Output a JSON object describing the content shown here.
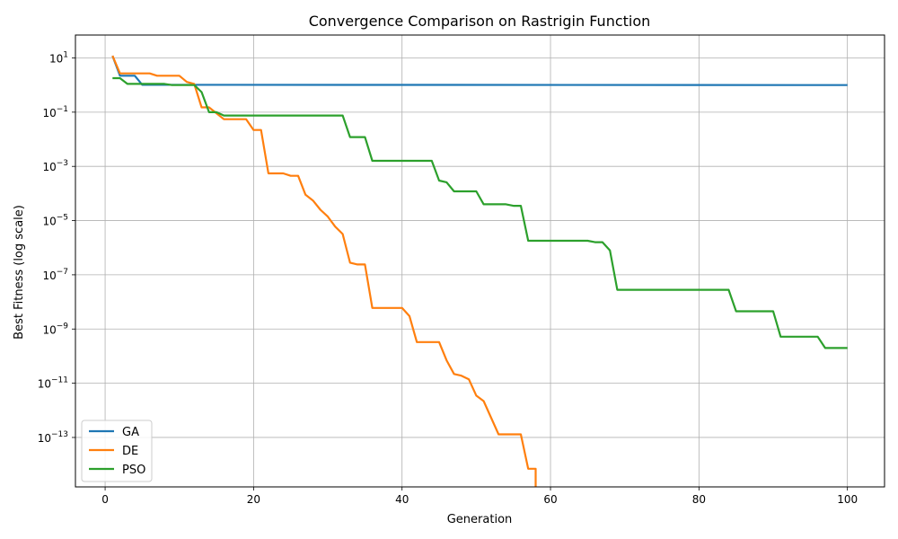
{
  "chart_data": {
    "type": "line",
    "title": "Convergence Comparison on Rastrigin Function",
    "xlabel": "Generation",
    "ylabel": "Best Fitness (log scale)",
    "yscale": "log",
    "xlim": [
      -4,
      105
    ],
    "ylim": [
      1.5e-15,
      70
    ],
    "xticks": [
      0,
      20,
      40,
      60,
      80,
      100
    ],
    "yticks": [
      {
        "value": 10,
        "base": "10",
        "exp": "1"
      },
      {
        "value": 0.1,
        "base": "10",
        "exp": "−1"
      },
      {
        "value": 0.001,
        "base": "10",
        "exp": "−3"
      },
      {
        "value": 1e-05,
        "base": "10",
        "exp": "−5"
      },
      {
        "value": 1e-07,
        "base": "10",
        "exp": "−7"
      },
      {
        "value": 1e-09,
        "base": "10",
        "exp": "−9"
      },
      {
        "value": 1e-11,
        "base": "10",
        "exp": "−11"
      },
      {
        "value": 1e-13,
        "base": "10",
        "exp": "−13"
      }
    ],
    "grid": true,
    "legend_position": "lower-left",
    "series": [
      {
        "name": "GA",
        "color": "#1f77b4",
        "points": [
          [
            1,
            12
          ],
          [
            2,
            2.2
          ],
          [
            4,
            2.2
          ],
          [
            5,
            1.02
          ],
          [
            100,
            1.0
          ]
        ]
      },
      {
        "name": "DE",
        "color": "#ff7f0e",
        "points": [
          [
            1,
            12
          ],
          [
            2,
            2.7
          ],
          [
            6,
            2.7
          ],
          [
            7,
            2.2
          ],
          [
            10,
            2.2
          ],
          [
            11,
            1.3
          ],
          [
            12,
            1.1
          ],
          [
            13,
            0.15
          ],
          [
            14,
            0.15
          ],
          [
            16,
            0.055
          ],
          [
            19,
            0.055
          ],
          [
            20,
            0.022
          ],
          [
            21,
            0.022
          ],
          [
            22,
            0.00055
          ],
          [
            24,
            0.00055
          ],
          [
            25,
            0.00045
          ],
          [
            26,
            0.00045
          ],
          [
            27,
            9e-05
          ],
          [
            28,
            5.5e-05
          ],
          [
            29,
            2.5e-05
          ],
          [
            30,
            1.4e-05
          ],
          [
            31,
            6e-06
          ],
          [
            32,
            3.2e-06
          ],
          [
            33,
            2.8e-07
          ],
          [
            34,
            2.4e-07
          ],
          [
            35,
            2.4e-07
          ],
          [
            36,
            6e-09
          ],
          [
            40,
            6e-09
          ],
          [
            41,
            3e-09
          ],
          [
            42,
            3.3e-10
          ],
          [
            45,
            3.3e-10
          ],
          [
            46,
            7e-11
          ],
          [
            47,
            2.2e-11
          ],
          [
            48,
            1.9e-11
          ],
          [
            49,
            1.4e-11
          ],
          [
            50,
            3.5e-12
          ],
          [
            51,
            2.2e-12
          ],
          [
            53,
            1.3e-13
          ],
          [
            56,
            1.3e-13
          ],
          [
            57,
            7e-15
          ],
          [
            58,
            7e-15
          ],
          [
            58,
            1.5e-15
          ]
        ]
      },
      {
        "name": "PSO",
        "color": "#2ca02c",
        "points": [
          [
            1,
            1.8
          ],
          [
            2,
            1.8
          ],
          [
            3,
            1.1
          ],
          [
            5,
            1.1
          ],
          [
            8,
            1.1
          ],
          [
            9,
            1.0
          ],
          [
            12,
            1.0
          ],
          [
            13,
            0.55
          ],
          [
            14,
            0.1
          ],
          [
            15,
            0.1
          ],
          [
            16,
            0.075
          ],
          [
            32,
            0.075
          ],
          [
            33,
            0.012
          ],
          [
            35,
            0.012
          ],
          [
            36,
            0.0016
          ],
          [
            44,
            0.0016
          ],
          [
            45,
            0.0003
          ],
          [
            46,
            0.00026
          ],
          [
            47,
            0.00012
          ],
          [
            50,
            0.00012
          ],
          [
            51,
            4e-05
          ],
          [
            54,
            4e-05
          ],
          [
            55,
            3.5e-05
          ],
          [
            56,
            3.5e-05
          ],
          [
            57,
            1.8e-06
          ],
          [
            65,
            1.8e-06
          ],
          [
            66,
            1.6e-06
          ],
          [
            67,
            1.6e-06
          ],
          [
            68,
            8e-07
          ],
          [
            69,
            2.8e-08
          ],
          [
            84,
            2.8e-08
          ],
          [
            85,
            4.5e-09
          ],
          [
            90,
            4.5e-09
          ],
          [
            91,
            5.2e-10
          ],
          [
            96,
            5.2e-10
          ],
          [
            97,
            2e-10
          ],
          [
            100,
            2e-10
          ]
        ]
      }
    ]
  }
}
